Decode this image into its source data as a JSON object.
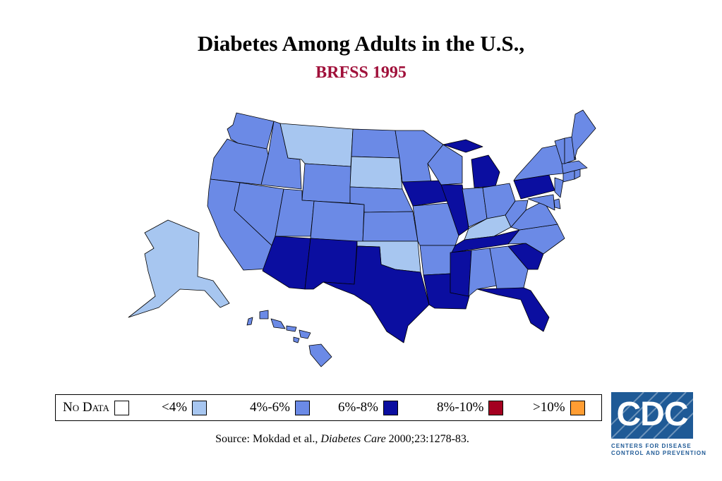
{
  "title": "Diabetes Among Adults in the U.S.,",
  "subtitle": "BRFSS 1995",
  "legend": [
    {
      "label_a": "N",
      "label_b": "o Data",
      "color": "#ffffff",
      "key": "nodata"
    },
    {
      "label": "<4%",
      "color": "#a7c6f0",
      "key": "c1"
    },
    {
      "label": "4%-6%",
      "color": "#6b8ae6",
      "key": "c2"
    },
    {
      "label": "6%-8%",
      "color": "#0b0ea0",
      "key": "c3"
    },
    {
      "label": "8%-10%",
      "color": "#a40020",
      "key": "c4"
    },
    {
      "label": ">10%",
      "color": "#ff9d33",
      "key": "c5"
    }
  ],
  "source": {
    "prefix": "Source: Mokdad et al.,",
    "journal": "Diabetes Care",
    "suffix": "2000;23:1278-83."
  },
  "logo": {
    "text": "CDC",
    "caption_line1": "CENTERS FOR DISEASE",
    "caption_line2": "CONTROL AND PREVENTION",
    "color": "#1f5a96"
  },
  "map": {
    "categories": {
      "c1": "<4%",
      "c2": "4%-6%",
      "c3": "6%-8%"
    },
    "states": [
      {
        "name": "WA",
        "category": "c2"
      },
      {
        "name": "OR",
        "category": "c2"
      },
      {
        "name": "CA",
        "category": "c2"
      },
      {
        "name": "ID",
        "category": "c2"
      },
      {
        "name": "NV",
        "category": "c2"
      },
      {
        "name": "MT",
        "category": "c1"
      },
      {
        "name": "WY",
        "category": "c2"
      },
      {
        "name": "UT",
        "category": "c2"
      },
      {
        "name": "CO",
        "category": "c2"
      },
      {
        "name": "AZ",
        "category": "c3"
      },
      {
        "name": "NM",
        "category": "c3"
      },
      {
        "name": "ND",
        "category": "c2"
      },
      {
        "name": "SD",
        "category": "c1"
      },
      {
        "name": "NE",
        "category": "c2"
      },
      {
        "name": "KS",
        "category": "c2"
      },
      {
        "name": "OK",
        "category": "c1"
      },
      {
        "name": "TX",
        "category": "c3"
      },
      {
        "name": "MN",
        "category": "c2"
      },
      {
        "name": "IA",
        "category": "c3"
      },
      {
        "name": "MO",
        "category": "c2"
      },
      {
        "name": "AR",
        "category": "c2"
      },
      {
        "name": "LA",
        "category": "c3"
      },
      {
        "name": "WI",
        "category": "c2"
      },
      {
        "name": "IL",
        "category": "c3"
      },
      {
        "name": "MI",
        "category": "c3"
      },
      {
        "name": "IN",
        "category": "c2"
      },
      {
        "name": "OH",
        "category": "c2"
      },
      {
        "name": "KY",
        "category": "c1"
      },
      {
        "name": "TN",
        "category": "c3"
      },
      {
        "name": "MS",
        "category": "c3"
      },
      {
        "name": "AL",
        "category": "c2"
      },
      {
        "name": "GA",
        "category": "c2"
      },
      {
        "name": "FL",
        "category": "c3"
      },
      {
        "name": "SC",
        "category": "c3"
      },
      {
        "name": "NC",
        "category": "c2"
      },
      {
        "name": "VA",
        "category": "c2"
      },
      {
        "name": "WV",
        "category": "c2"
      },
      {
        "name": "PA",
        "category": "c3"
      },
      {
        "name": "NY",
        "category": "c2"
      },
      {
        "name": "NJ",
        "category": "c2"
      },
      {
        "name": "DE",
        "category": "c2"
      },
      {
        "name": "MD",
        "category": "c2"
      },
      {
        "name": "CT",
        "category": "c2"
      },
      {
        "name": "RI",
        "category": "c2"
      },
      {
        "name": "MA",
        "category": "c2"
      },
      {
        "name": "VT",
        "category": "c2"
      },
      {
        "name": "NH",
        "category": "c2"
      },
      {
        "name": "ME",
        "category": "c2"
      },
      {
        "name": "AK",
        "category": "c1"
      },
      {
        "name": "HI",
        "category": "c2"
      }
    ]
  }
}
